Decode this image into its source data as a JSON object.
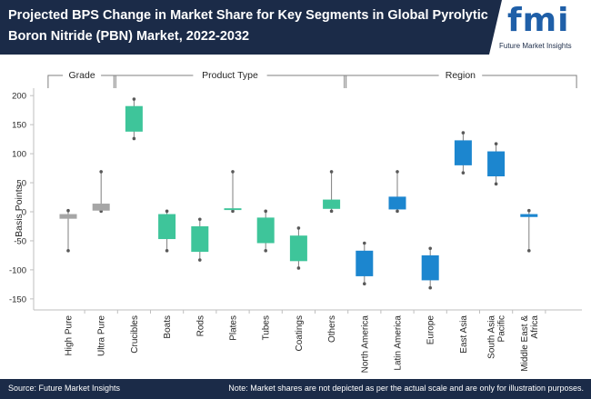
{
  "header": {
    "title": "Projected BPS Change in Market Share for Key Segments in Global Pyrolytic Boron Nitride (PBN) Market, 2022-2032",
    "logo_mark": "fmi",
    "logo_text": "Future Market Insights"
  },
  "footer": {
    "source": "Source: Future Market Insights",
    "note": "Note: Market shares are not depicted as per the actual scale and are only for illustration purposes."
  },
  "colors": {
    "grade": "#a6a6a6",
    "product_type": "#3ec59a",
    "region": "#1c86cf",
    "header_bg": "#1b2b48"
  },
  "chart_data": {
    "type": "box",
    "title": "Projected BPS Change in Market Share for Key Segments in Global Pyrolytic Boron Nitride (PBN) Market, 2022-2032",
    "ylabel": "Basis Points",
    "xlabel": "",
    "ylim": [
      -150,
      200
    ],
    "yticks": [
      -150,
      -100,
      -50,
      0,
      50,
      100,
      150,
      200
    ],
    "groups": [
      {
        "label": "Grade",
        "key": "grade",
        "start": 0,
        "end": 1
      },
      {
        "label": "Product Type",
        "key": "product_type",
        "start": 2,
        "end": 8
      },
      {
        "label": "Region",
        "key": "region",
        "start": 9,
        "end": 15
      }
    ],
    "categories": [
      "High Pure",
      "Ultra Pure",
      "Crucibles",
      "Boats",
      "Rods",
      "Plates",
      "Tubes",
      "Coatings",
      "Others",
      "North America",
      "Latin America",
      "Europe",
      "East Asia",
      "South Asia Pacific",
      "Middle East & Africa"
    ],
    "boxes": [
      {
        "category": "High Pure",
        "group": "grade",
        "low": -67,
        "q1": -12,
        "q3": -4,
        "high": 2
      },
      {
        "category": "Ultra Pure",
        "group": "grade",
        "low": 1,
        "q1": 2,
        "q3": 14,
        "high": 69
      },
      {
        "category": "Crucibles",
        "group": "product_type",
        "low": 126,
        "q1": 138,
        "q3": 182,
        "high": 194
      },
      {
        "category": "Boats",
        "group": "product_type",
        "low": -67,
        "q1": -47,
        "q3": -4,
        "high": 1
      },
      {
        "category": "Rods",
        "group": "product_type",
        "low": -83,
        "q1": -69,
        "q3": -25,
        "high": -13
      },
      {
        "category": "Plates",
        "group": "product_type",
        "low": 1,
        "q1": 3,
        "q3": 6,
        "high": 69
      },
      {
        "category": "Tubes",
        "group": "product_type",
        "low": -67,
        "q1": -54,
        "q3": -10,
        "high": 1
      },
      {
        "category": "Coatings",
        "group": "product_type",
        "low": -97,
        "q1": -85,
        "q3": -41,
        "high": -28
      },
      {
        "category": "Others",
        "group": "product_type",
        "low": 1,
        "q1": 5,
        "q3": 21,
        "high": 69
      },
      {
        "category": "North America",
        "group": "region",
        "low": -124,
        "q1": -111,
        "q3": -67,
        "high": -54
      },
      {
        "category": "Latin America",
        "group": "region",
        "low": 1,
        "q1": 4,
        "q3": 26,
        "high": 69
      },
      {
        "category": "Europe",
        "group": "region",
        "low": -131,
        "q1": -118,
        "q3": -75,
        "high": -63
      },
      {
        "category": "East Asia",
        "group": "region",
        "low": 67,
        "q1": 80,
        "q3": 123,
        "high": 136
      },
      {
        "category": "South Asia Pacific",
        "group": "region",
        "low": 48,
        "q1": 61,
        "q3": 104,
        "high": 117
      },
      {
        "category": "Middle East & Africa",
        "group": "region",
        "low": -67,
        "q1": -9,
        "q3": -4,
        "high": 2
      }
    ]
  }
}
